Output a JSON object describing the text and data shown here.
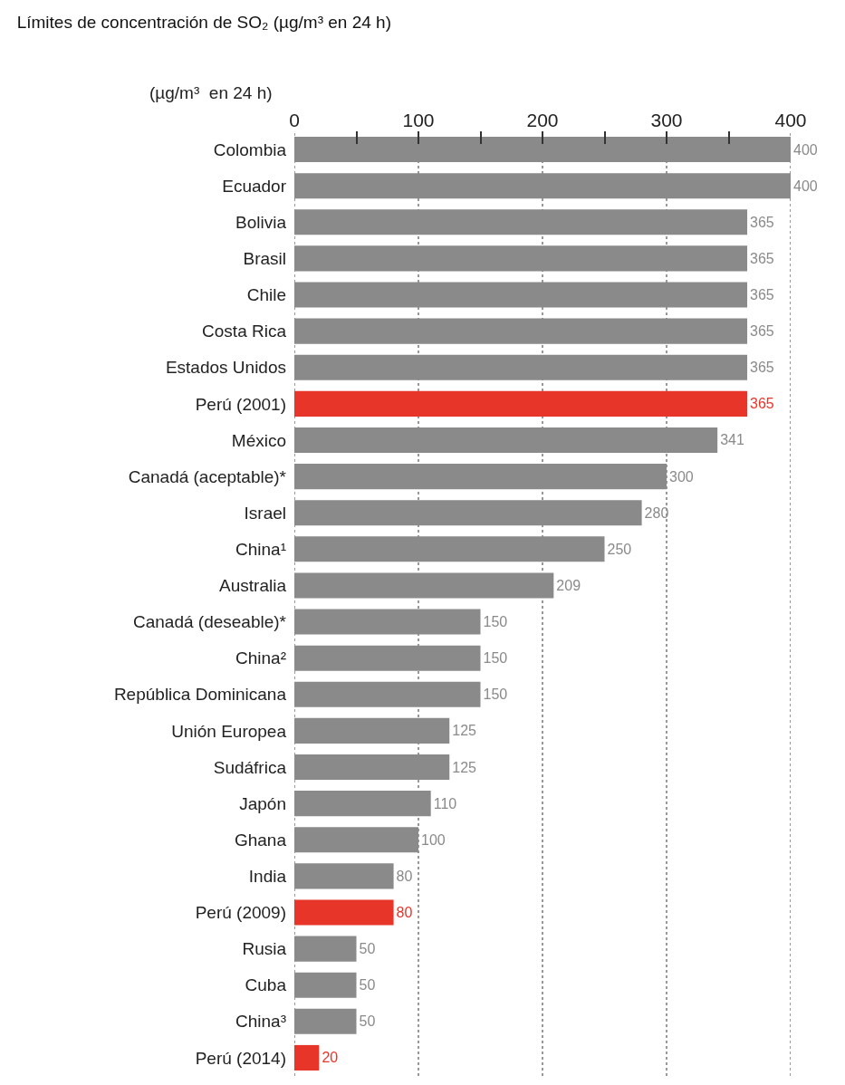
{
  "chart_data": {
    "type": "bar",
    "orientation": "horizontal",
    "title": "Límites de concentración de SO₂ (µg/m³ en 24 h)",
    "xlabel": "(µg/m³  en 24 h)",
    "categories": [
      "Colombia",
      "Ecuador",
      "Bolivia",
      "Brasil",
      "Chile",
      "Costa Rica",
      "Estados Unidos",
      "Perú (2001)",
      "México",
      "Canadá (aceptable)*",
      "Israel",
      "China¹",
      "Australia",
      "Canadá (deseable)*",
      "China²",
      "República Dominicana",
      "Unión Europea",
      "Sudáfrica",
      "Japón",
      "Ghana",
      "India",
      "Perú (2009)",
      "Rusia",
      "Cuba",
      "China³",
      "Perú (2014)"
    ],
    "values": [
      400,
      400,
      365,
      365,
      365,
      365,
      365,
      365,
      341,
      300,
      280,
      250,
      209,
      150,
      150,
      150,
      125,
      125,
      110,
      100,
      80,
      80,
      50,
      50,
      50,
      20
    ],
    "colors": [
      "#8a8a8a",
      "#8a8a8a",
      "#8a8a8a",
      "#8a8a8a",
      "#8a8a8a",
      "#8a8a8a",
      "#8a8a8a",
      "#e8352a",
      "#8a8a8a",
      "#8a8a8a",
      "#8a8a8a",
      "#8a8a8a",
      "#8a8a8a",
      "#8a8a8a",
      "#8a8a8a",
      "#8a8a8a",
      "#8a8a8a",
      "#8a8a8a",
      "#8a8a8a",
      "#8a8a8a",
      "#8a8a8a",
      "#e8352a",
      "#8a8a8a",
      "#8a8a8a",
      "#8a8a8a",
      "#e8352a"
    ],
    "data_labels": true,
    "grid": "x",
    "xlim": [
      0,
      400
    ],
    "xticks": [
      0,
      {
        "value": 50,
        "label": null
      },
      100,
      {
        "value": 150,
        "label": null
      },
      200,
      {
        "value": 250,
        "label": null
      },
      300,
      {
        "value": 350,
        "label": null
      },
      400
    ]
  }
}
